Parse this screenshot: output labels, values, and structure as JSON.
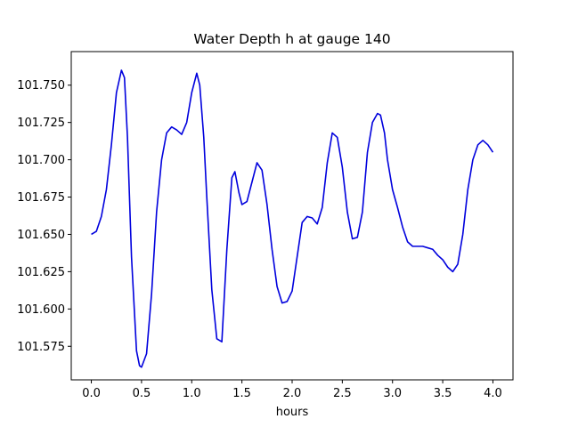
{
  "chart_data": {
    "type": "line",
    "title": "Water Depth h at gauge 140",
    "xlabel": "hours",
    "ylabel": "",
    "xlim": [
      -0.2,
      4.2
    ],
    "ylim": [
      101.5525,
      101.7725
    ],
    "xticks": [
      0.0,
      0.5,
      1.0,
      1.5,
      2.0,
      2.5,
      3.0,
      3.5,
      4.0
    ],
    "xtick_labels": [
      "0.0",
      "0.5",
      "1.0",
      "1.5",
      "2.0",
      "2.5",
      "3.0",
      "3.5",
      "4.0"
    ],
    "yticks": [
      101.575,
      101.6,
      101.625,
      101.65,
      101.675,
      101.7,
      101.725,
      101.75
    ],
    "ytick_labels": [
      "101.575",
      "101.600",
      "101.625",
      "101.650",
      "101.675",
      "101.700",
      "101.725",
      "101.750"
    ],
    "grid": false,
    "colors": {
      "line": "#0000dd",
      "axis": "#000000"
    },
    "series": [
      {
        "x": [
          0.0,
          0.05,
          0.1,
          0.15,
          0.2,
          0.25,
          0.3,
          0.33,
          0.36,
          0.4,
          0.45,
          0.48,
          0.5,
          0.55,
          0.6,
          0.65,
          0.7,
          0.75,
          0.8,
          0.85,
          0.9,
          0.95,
          1.0,
          1.05,
          1.08,
          1.12,
          1.15,
          1.2,
          1.25,
          1.3,
          1.35,
          1.4,
          1.43,
          1.47,
          1.5,
          1.55,
          1.6,
          1.65,
          1.7,
          1.75,
          1.8,
          1.85,
          1.9,
          1.95,
          2.0,
          2.05,
          2.1,
          2.15,
          2.2,
          2.25,
          2.3,
          2.35,
          2.4,
          2.45,
          2.5,
          2.55,
          2.6,
          2.65,
          2.7,
          2.75,
          2.8,
          2.85,
          2.88,
          2.92,
          2.95,
          3.0,
          3.05,
          3.1,
          3.15,
          3.2,
          3.25,
          3.3,
          3.35,
          3.4,
          3.45,
          3.5,
          3.55,
          3.6,
          3.65,
          3.7,
          3.75,
          3.8,
          3.85,
          3.9,
          3.95,
          4.0
        ],
        "values": [
          101.65,
          101.652,
          101.662,
          101.68,
          101.71,
          101.745,
          101.76,
          101.755,
          101.715,
          101.635,
          101.572,
          101.562,
          101.561,
          101.57,
          101.61,
          101.665,
          101.7,
          101.718,
          101.722,
          101.72,
          101.717,
          101.725,
          101.745,
          101.758,
          101.75,
          101.715,
          101.675,
          101.613,
          101.58,
          101.578,
          101.64,
          101.688,
          101.692,
          101.678,
          101.67,
          101.672,
          101.685,
          101.698,
          101.693,
          101.67,
          101.64,
          101.615,
          101.604,
          101.605,
          101.612,
          101.635,
          101.658,
          101.662,
          101.661,
          101.657,
          101.668,
          101.698,
          101.718,
          101.715,
          101.695,
          101.665,
          101.647,
          101.648,
          101.665,
          101.705,
          101.725,
          101.731,
          101.73,
          101.718,
          101.7,
          101.68,
          101.668,
          101.655,
          101.645,
          101.642,
          101.642,
          101.642,
          101.641,
          101.64,
          101.636,
          101.633,
          101.628,
          101.625,
          101.63,
          101.65,
          101.68,
          101.7,
          101.71,
          101.713,
          101.71,
          101.705
        ]
      }
    ]
  }
}
